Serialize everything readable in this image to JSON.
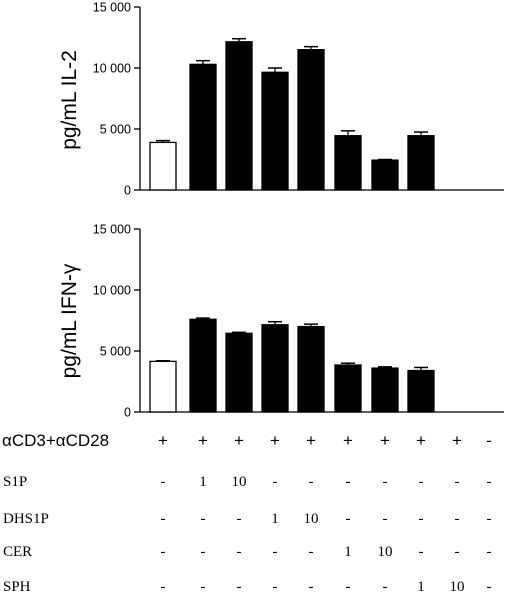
{
  "chart_data": [
    {
      "type": "bar",
      "ylabel": "pg/mL IL-2",
      "ylim": [
        0,
        15000
      ],
      "yticks": [
        0,
        5000,
        10000,
        15000
      ],
      "ytick_labels": [
        "0",
        "5 000",
        "10 000",
        "15 000"
      ],
      "values": [
        3900,
        10300,
        12150,
        9650,
        11500,
        4450,
        2450,
        4450,
        0,
        0
      ],
      "errors": [
        150,
        300,
        250,
        350,
        250,
        400,
        50,
        300,
        0,
        0
      ],
      "fills": [
        "white",
        "black",
        "black",
        "black",
        "black",
        "black",
        "black",
        "black",
        "black",
        "black"
      ]
    },
    {
      "type": "bar",
      "ylabel": "pg/mL IFN-γ",
      "ylim": [
        0,
        15000
      ],
      "yticks": [
        0,
        5000,
        10000,
        15000
      ],
      "ytick_labels": [
        "0",
        "5 000",
        "10 000",
        "15 000"
      ],
      "values": [
        4150,
        7600,
        6450,
        7150,
        7000,
        3850,
        3600,
        3400,
        0,
        0
      ],
      "errors": [
        50,
        100,
        80,
        250,
        200,
        150,
        100,
        250,
        0,
        0
      ],
      "fills": [
        "white",
        "black",
        "black",
        "black",
        "black",
        "black",
        "black",
        "black",
        "black",
        "black"
      ]
    }
  ],
  "conditions_table": {
    "rows": [
      {
        "label": "αCD3+αCD28",
        "cells": [
          "+",
          "+",
          "+",
          "+",
          "+",
          "+",
          "+",
          "+",
          "+",
          "-"
        ]
      },
      {
        "label": "S1P",
        "cells": [
          "-",
          "1",
          "10",
          "-",
          "-",
          "-",
          "-",
          "-",
          "-",
          "-"
        ]
      },
      {
        "label": "DHS1P",
        "cells": [
          "-",
          "-",
          "-",
          "1",
          "10",
          "-",
          "-",
          "-",
          "-",
          "-"
        ]
      },
      {
        "label": "CER",
        "cells": [
          "-",
          "-",
          "-",
          "-",
          "-",
          "1",
          "10",
          "-",
          "-",
          "-"
        ]
      },
      {
        "label": "SPH",
        "cells": [
          "-",
          "-",
          "-",
          "-",
          "-",
          "-",
          "-",
          "1",
          "10",
          "-"
        ]
      }
    ]
  }
}
